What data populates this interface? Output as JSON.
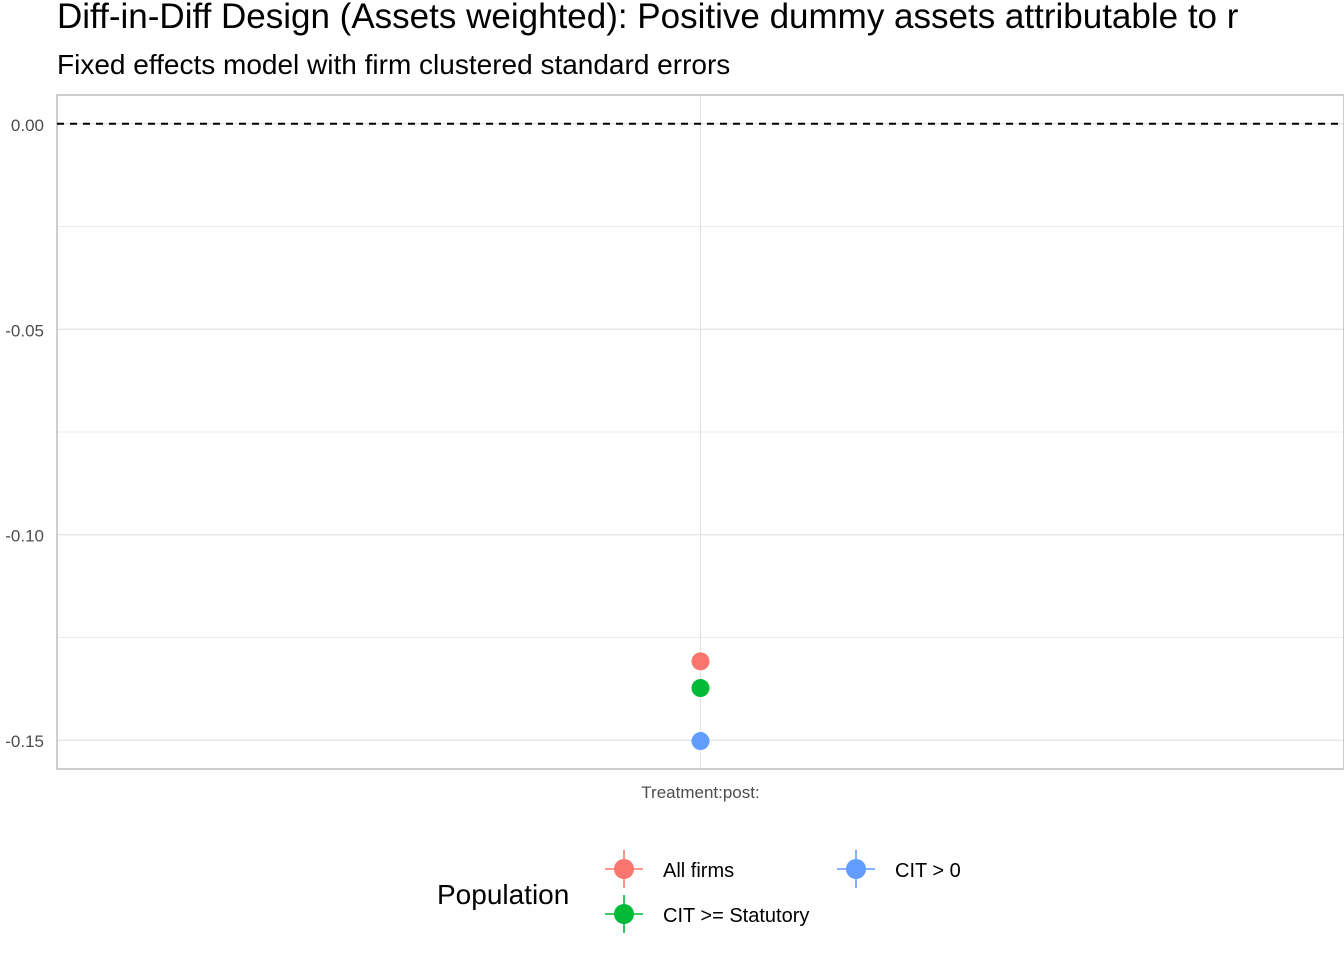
{
  "chart_data": {
    "type": "scatter",
    "title": "Diff-in-Diff Design (Assets weighted): Positive dummy assets attributable to r",
    "subtitle": "Fixed effects model with firm clustered standard errors",
    "xlabel": "",
    "ylabel": "",
    "categories": [
      "Treatment:post:"
    ],
    "ylim": [
      -0.157,
      0.007
    ],
    "y_ticks": [
      0.0,
      -0.05,
      -0.1,
      -0.15
    ],
    "y_tick_labels": [
      "0.00",
      "-0.05",
      "-0.10",
      "-0.15"
    ],
    "grid": true,
    "reference_line": {
      "y": 0,
      "style": "dashed"
    },
    "legend": {
      "title": "Population",
      "placement": "bottom"
    },
    "series": [
      {
        "name": "All firms",
        "color": "#F8766D",
        "values": [
          -0.1308
        ]
      },
      {
        "name": "CIT >= Statutory",
        "color": "#00BA38",
        "values": [
          -0.1373
        ]
      },
      {
        "name": "CIT > 0",
        "color": "#619CFF",
        "values": [
          -0.1502
        ]
      }
    ]
  }
}
